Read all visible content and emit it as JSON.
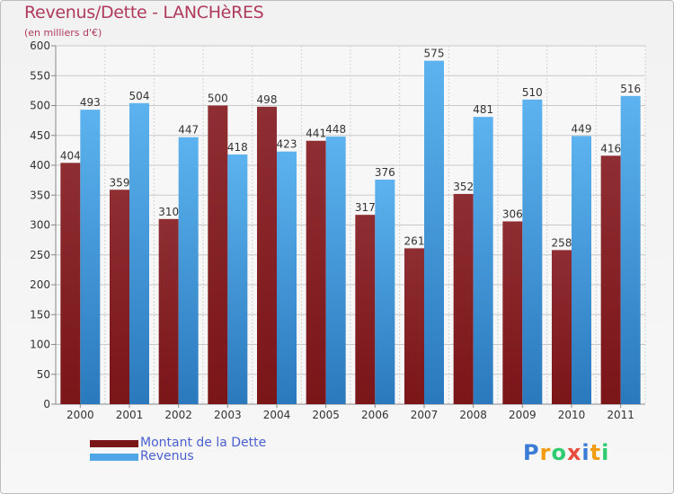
{
  "chart_data": {
    "type": "bar",
    "title": "Revenus/Dette - LANCHèRES",
    "subtitle": "(en milliers d'€)",
    "xlabel": "",
    "ylabel": "",
    "ylim": [
      0,
      600
    ],
    "yticks": [
      0,
      50,
      100,
      150,
      200,
      250,
      300,
      350,
      400,
      450,
      500,
      550,
      600
    ],
    "grid": true,
    "categories": [
      "2000",
      "2001",
      "2002",
      "2003",
      "2004",
      "2005",
      "2006",
      "2007",
      "2008",
      "2009",
      "2010",
      "2011"
    ],
    "series": [
      {
        "name": "Montant de la Dette",
        "color": "#7a1518",
        "values": [
          404,
          359,
          310,
          500,
          498,
          441,
          317,
          261,
          352,
          306,
          258,
          416
        ]
      },
      {
        "name": "Revenus",
        "color": "#4ea6e6",
        "values": [
          493,
          504,
          447,
          418,
          423,
          448,
          376,
          575,
          481,
          510,
          449,
          516
        ]
      }
    ],
    "legend_position": "bottom-left"
  },
  "logo": {
    "letters": [
      "P",
      "r",
      "o",
      "x",
      "i",
      "t",
      "i"
    ],
    "colors": [
      "#3a7bd5",
      "#f39c12",
      "#2ecc71",
      "#e74c3c",
      "#3a7bd5",
      "#f39c12",
      "#2ecc71"
    ]
  }
}
